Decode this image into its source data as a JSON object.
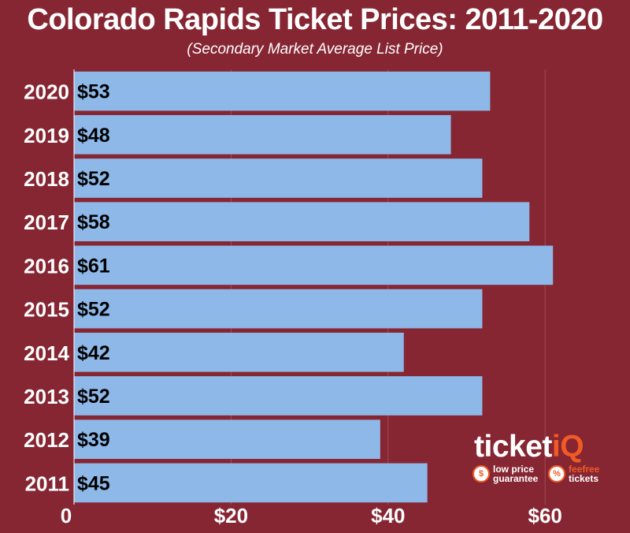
{
  "title": "Colorado Rapids Ticket Prices: 2011-2020",
  "subtitle": "(Secondary Market Average List Price)",
  "colors": {
    "background": "#862633",
    "bar": "#8db8e8",
    "text": "#ffffff",
    "brand_accent": "#f15a24"
  },
  "logo": {
    "word_main": "ticket",
    "word_accent": "iQ",
    "badge1_line1": "low price",
    "badge1_line2": "guarantee",
    "badge2_line1": "feefree",
    "badge2_line2": "tickets"
  },
  "chart_data": {
    "type": "bar",
    "orientation": "horizontal",
    "categories": [
      "2020",
      "2019",
      "2018",
      "2017",
      "2016",
      "2015",
      "2014",
      "2013",
      "2012",
      "2011"
    ],
    "values": [
      53,
      48,
      52,
      58,
      61,
      52,
      42,
      52,
      39,
      45
    ],
    "labels": [
      "$53",
      "$48",
      "$52",
      "$58",
      "$61",
      "$52",
      "$42",
      "$52",
      "$39",
      "$45"
    ],
    "xlim": [
      0,
      67
    ],
    "xticks": [
      0,
      20,
      40,
      60
    ],
    "xtick_labels": [
      "0",
      "$20",
      "$40",
      "$60"
    ],
    "grid": true
  }
}
